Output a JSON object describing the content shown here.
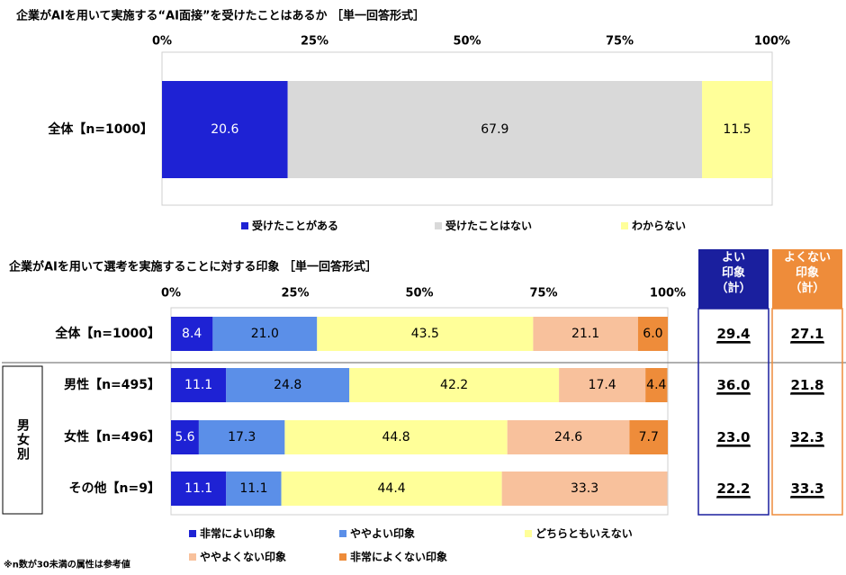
{
  "chart_data": [
    {
      "type": "bar",
      "orientation": "horizontal",
      "stacked": "percent",
      "title": "企業がAIを用いて実施する“AI面接”を受けたことはあるか ［単一回答形式］",
      "xlim": [
        0,
        100
      ],
      "x_ticks": [
        "0%",
        "25%",
        "50%",
        "75%",
        "100%"
      ],
      "categories": [
        "全体【n=1000】"
      ],
      "series": [
        {
          "name": "受けたことがある",
          "values": [
            20.6
          ],
          "labels": [
            "20.6"
          ],
          "color": "#1e22d4",
          "label_color": "#ffffff"
        },
        {
          "name": "受けたことはない",
          "values": [
            67.9
          ],
          "labels": [
            "67.9"
          ],
          "color": "#d9d9d9",
          "label_color": "#000000"
        },
        {
          "name": "わからない",
          "values": [
            11.5
          ],
          "labels": [
            "11.5"
          ],
          "color": "#ffff99",
          "label_color": "#000000"
        }
      ],
      "legend_position": "bottom",
      "grid": false
    },
    {
      "type": "bar",
      "orientation": "horizontal",
      "stacked": "percent",
      "title": "企業がAIを用いて選考を実施することに対する印象 ［単一回答形式］",
      "xlim": [
        0,
        100
      ],
      "x_ticks": [
        "0%",
        "25%",
        "50%",
        "75%",
        "100%"
      ],
      "categories": [
        "全体【n=1000】",
        "男性【n=495】",
        "女性【n=496】",
        "その他【n=9】"
      ],
      "group_label": "男女別",
      "series": [
        {
          "name": "非常によい印象",
          "values": [
            8.4,
            11.1,
            5.6,
            11.1
          ],
          "labels": [
            "8.4",
            "11.1",
            "5.6",
            "11.1"
          ],
          "color": "#1e22d4",
          "label_color": "#ffffff"
        },
        {
          "name": "ややよい印象",
          "values": [
            21.0,
            24.8,
            17.3,
            11.1
          ],
          "labels": [
            "21.0",
            "24.8",
            "17.3",
            "11.1"
          ],
          "color": "#5b8fe8",
          "label_color": "#000000"
        },
        {
          "name": "どちらともいえない",
          "values": [
            43.5,
            42.2,
            44.8,
            44.4
          ],
          "labels": [
            "43.5",
            "42.2",
            "44.8",
            "44.4"
          ],
          "color": "#ffff99",
          "label_color": "#000000"
        },
        {
          "name": "ややよくない印象",
          "values": [
            21.1,
            17.4,
            24.6,
            33.3
          ],
          "labels": [
            "21.1",
            "17.4",
            "24.6",
            "33.3"
          ],
          "color": "#f8c19c",
          "label_color": "#000000"
        },
        {
          "name": "非常によくない印象",
          "values": [
            6.0,
            4.4,
            7.7,
            0
          ],
          "labels": [
            "6.0",
            "4.4",
            "7.7",
            ""
          ],
          "color": "#ee8c3a",
          "label_color": "#000000"
        }
      ],
      "summary_columns": [
        {
          "header": "よい\n印象\n（計）",
          "values": [
            "29.4",
            "36.0",
            "23.0",
            "22.2"
          ],
          "color": "#1a1f9e"
        },
        {
          "header": "よくない\n印象\n（計）",
          "values": [
            "27.1",
            "21.8",
            "32.3",
            "33.3"
          ],
          "color": "#ee8c3a"
        }
      ],
      "legend_position": "bottom",
      "grid": false
    }
  ],
  "footnote": "※n数が30未満の属性は参考値"
}
